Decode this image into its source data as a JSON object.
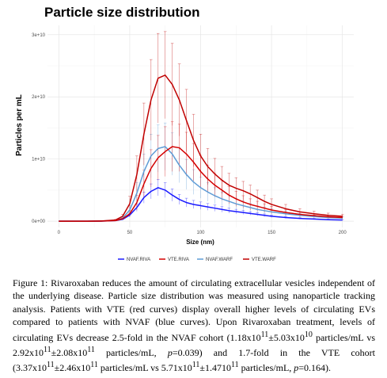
{
  "chart_data": {
    "type": "line",
    "title": "Particle size distribution",
    "xlabel": "Size (nm)",
    "ylabel": "Particles per mL",
    "xlim": [
      -8,
      208
    ],
    "ylim": [
      -1000000000.0,
      31500000000.0
    ],
    "x_ticks": [
      0,
      50,
      100,
      150,
      200
    ],
    "x_tick_labels": [
      "0",
      "50",
      "100",
      "150",
      "200"
    ],
    "y_ticks": [
      0,
      10000000000.0,
      20000000000.0,
      30000000000.0
    ],
    "y_tick_labels": [
      "0e+00",
      "1e+10",
      "2e+10",
      "3e+10"
    ],
    "grid": true,
    "legend_position": "bottom",
    "error_bars": true,
    "x": [
      0,
      10,
      20,
      30,
      40,
      45,
      50,
      55,
      60,
      65,
      70,
      75,
      80,
      85,
      90,
      95,
      100,
      105,
      110,
      115,
      120,
      125,
      130,
      135,
      140,
      145,
      150,
      160,
      170,
      180,
      190,
      200
    ],
    "series": [
      {
        "name": "NVAF.RIVA",
        "color": "#1a1aff",
        "values": [
          0,
          0,
          0,
          20000000.0,
          100000000.0,
          300000000.0,
          1000000000.0,
          2200000000.0,
          3800000000.0,
          4800000000.0,
          5400000000.0,
          5000000000.0,
          4200000000.0,
          3500000000.0,
          3000000000.0,
          2700000000.0,
          2500000000.0,
          2300000000.0,
          2100000000.0,
          1900000000.0,
          1700000000.0,
          1550000000.0,
          1400000000.0,
          1250000000.0,
          1100000000.0,
          950000000.0,
          800000000.0,
          600000000.0,
          450000000.0,
          350000000.0,
          250000000.0,
          200000000.0
        ],
        "errors": [
          0,
          0,
          0,
          10000000.0,
          50000000.0,
          100000000.0,
          300000000.0,
          600000000.0,
          900000000.0,
          1200000000.0,
          1300000000.0,
          1200000000.0,
          1000000000.0,
          800000000.0,
          700000000.0,
          650000000.0,
          600000000.0,
          550000000.0,
          500000000.0,
          450000000.0,
          400000000.0,
          360000000.0,
          320000000.0,
          280000000.0,
          250000000.0,
          220000000.0,
          200000000.0,
          160000000.0,
          120000000.0,
          100000000.0,
          80000000.0,
          60000000.0
        ]
      },
      {
        "name": "VTE.RIVA",
        "color": "#d40000",
        "values": [
          0,
          0,
          0,
          20000000.0,
          100000000.0,
          400000000.0,
          1200000000.0,
          3000000000.0,
          6000000000.0,
          8500000000.0,
          10200000000.0,
          11200000000.0,
          12000000000.0,
          11800000000.0,
          10800000000.0,
          9500000000.0,
          8000000000.0,
          6800000000.0,
          5800000000.0,
          5000000000.0,
          4200000000.0,
          3600000000.0,
          3100000000.0,
          2700000000.0,
          2400000000.0,
          2100000000.0,
          1800000000.0,
          1400000000.0,
          1100000000.0,
          900000000.0,
          700000000.0,
          600000000.0
        ],
        "errors": [
          0,
          0,
          0,
          10000000.0,
          50000000.0,
          150000000.0,
          500000000.0,
          1200000000.0,
          2200000000.0,
          3000000000.0,
          3600000000.0,
          4000000000.0,
          4000000000.0,
          3800000000.0,
          3500000000.0,
          3000000000.0,
          2600000000.0,
          2200000000.0,
          1900000000.0,
          1600000000.0,
          1400000000.0,
          1200000000.0,
          1000000000.0,
          900000000.0,
          800000000.0,
          700000000.0,
          600000000.0,
          500000000.0,
          400000000.0,
          300000000.0,
          250000000.0,
          200000000.0
        ]
      },
      {
        "name": "NVAF.WARF",
        "color": "#5e9cd6",
        "values": [
          0,
          0,
          0,
          30000000.0,
          150000000.0,
          500000000.0,
          1800000000.0,
          4500000000.0,
          8000000000.0,
          10500000000.0,
          11700000000.0,
          12000000000.0,
          10800000000.0,
          9000000000.0,
          7500000000.0,
          6300000000.0,
          5400000000.0,
          4700000000.0,
          4100000000.0,
          3600000000.0,
          3200000000.0,
          2800000000.0,
          2500000000.0,
          2200000000.0,
          1900000000.0,
          1700000000.0,
          1500000000.0,
          1200000000.0,
          950000000.0,
          750000000.0,
          600000000.0,
          500000000.0
        ],
        "errors": [
          0,
          0,
          0,
          10000000.0,
          60000000.0,
          200000000.0,
          700000000.0,
          1700000000.0,
          2800000000.0,
          3500000000.0,
          3800000000.0,
          3800000000.0,
          3400000000.0,
          2800000000.0,
          2400000000.0,
          2000000000.0,
          1700000000.0,
          1500000000.0,
          1300000000.0,
          1100000000.0,
          1000000000.0,
          900000000.0,
          800000000.0,
          700000000.0,
          600000000.0,
          550000000.0,
          500000000.0,
          400000000.0,
          300000000.0,
          250000000.0,
          200000000.0,
          150000000.0
        ]
      },
      {
        "name": "VTE.WARF",
        "color": "#c00000",
        "values": [
          0,
          0,
          0,
          40000000.0,
          200000000.0,
          800000000.0,
          2800000000.0,
          7500000000.0,
          14000000000.0,
          19500000000.0,
          23000000000.0,
          23500000000.0,
          22000000000.0,
          19500000000.0,
          16200000000.0,
          13000000000.0,
          10500000000.0,
          8800000000.0,
          7600000000.0,
          6600000000.0,
          5800000000.0,
          5300000000.0,
          4900000000.0,
          4400000000.0,
          3800000000.0,
          3200000000.0,
          2700000000.0,
          2000000000.0,
          1500000000.0,
          1200000000.0,
          950000000.0,
          800000000.0
        ],
        "errors": [
          0,
          0,
          0,
          20000000.0,
          100000000.0,
          300000000.0,
          1200000000.0,
          3000000000.0,
          5000000000.0,
          6500000000.0,
          7200000000.0,
          7000000000.0,
          6600000000.0,
          5800000000.0,
          5000000000.0,
          4200000000.0,
          3500000000.0,
          2900000000.0,
          2500000000.0,
          2200000000.0,
          1900000000.0,
          1700000000.0,
          1500000000.0,
          1400000000.0,
          1200000000.0,
          1000000000.0,
          900000000.0,
          700000000.0,
          500000000.0,
          400000000.0,
          350000000.0,
          300000000.0
        ]
      }
    ]
  },
  "caption": {
    "lead": "Figure 1: Rivaroxaban reduces the amount of circulating extracellular vesicles independent of the underlying disease. Particle size distribution was measured using nanoparticle tracking analysis. Patients with VTE (red curves) display overall higher levels of circulating EVs compared to patients with NVAF (blue curves). Upon Rivaroxaban treatment, levels of circulating EVs decrease 2.5-fold in the NVAF cohort (1.18x10",
    "sup1": "11",
    "t1": "±5.03x10",
    "sup2": "10",
    "t2": " particles/mL vs 2.92x10",
    "sup3": "11",
    "t3": "±2.08x10",
    "sup4": "11",
    "t4": " particles/mL, ",
    "p_label1": "p",
    "t5": "=0.039) and 1.7-fold in the VTE cohort (3.37x10",
    "sup5": "11",
    "t6": "±2.46x10",
    "sup6": "11",
    "t7": " particles/mL vs 5.71x10",
    "sup7": "11",
    "t8": "±1.4710",
    "sup8": "11",
    "t9": " particles/mL, ",
    "p_label2": "p",
    "t10": "=0.164)."
  }
}
